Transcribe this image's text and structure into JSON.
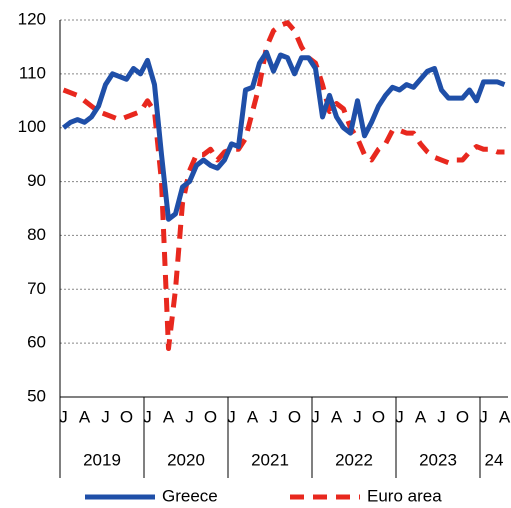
{
  "chart_data": {
    "type": "line",
    "x": [
      "2019-01",
      "2019-02",
      "2019-03",
      "2019-04",
      "2019-05",
      "2019-06",
      "2019-07",
      "2019-08",
      "2019-09",
      "2019-10",
      "2019-11",
      "2019-12",
      "2020-01",
      "2020-02",
      "2020-03",
      "2020-04",
      "2020-05",
      "2020-06",
      "2020-07",
      "2020-08",
      "2020-09",
      "2020-10",
      "2020-11",
      "2020-12",
      "2021-01",
      "2021-02",
      "2021-03",
      "2021-04",
      "2021-05",
      "2021-06",
      "2021-07",
      "2021-08",
      "2021-09",
      "2021-10",
      "2021-11",
      "2021-12",
      "2022-01",
      "2022-02",
      "2022-03",
      "2022-04",
      "2022-05",
      "2022-06",
      "2022-07",
      "2022-08",
      "2022-09",
      "2022-10",
      "2022-11",
      "2022-12",
      "2023-01",
      "2023-02",
      "2023-03",
      "2023-04",
      "2023-05",
      "2023-06",
      "2023-07",
      "2023-08",
      "2023-09",
      "2023-10",
      "2023-11",
      "2023-12",
      "2024-01",
      "2024-02",
      "2024-03",
      "2024-04"
    ],
    "xticks": [
      {
        "value": "2019-01",
        "label": "J"
      },
      {
        "value": "2019-04",
        "label": "A"
      },
      {
        "value": "2019-07",
        "label": "J"
      },
      {
        "value": "2019-10",
        "label": "O"
      },
      {
        "value": "2020-01",
        "label": "J"
      },
      {
        "value": "2020-04",
        "label": "A"
      },
      {
        "value": "2020-07",
        "label": "J"
      },
      {
        "value": "2020-10",
        "label": "O"
      },
      {
        "value": "2021-01",
        "label": "J"
      },
      {
        "value": "2021-04",
        "label": "A"
      },
      {
        "value": "2021-07",
        "label": "J"
      },
      {
        "value": "2021-10",
        "label": "O"
      },
      {
        "value": "2022-01",
        "label": "J"
      },
      {
        "value": "2022-04",
        "label": "A"
      },
      {
        "value": "2022-07",
        "label": "J"
      },
      {
        "value": "2022-10",
        "label": "O"
      },
      {
        "value": "2023-01",
        "label": "J"
      },
      {
        "value": "2023-04",
        "label": "A"
      },
      {
        "value": "2023-07",
        "label": "J"
      },
      {
        "value": "2023-10",
        "label": "O"
      },
      {
        "value": "2024-01",
        "label": "J"
      },
      {
        "value": "2024-04",
        "label": "A"
      }
    ],
    "xgroups": [
      {
        "value": "2019-01",
        "label": "2019"
      },
      {
        "value": "2020-01",
        "label": "2020"
      },
      {
        "value": "2021-01",
        "label": "2021"
      },
      {
        "value": "2022-01",
        "label": "2022"
      },
      {
        "value": "2023-01",
        "label": "2023"
      },
      {
        "value": "2024-01",
        "label": "24"
      }
    ],
    "series": [
      {
        "name": "Greece",
        "color": "#1f4fa8",
        "dash": false,
        "values": [
          100,
          101,
          101.5,
          101,
          102,
          104,
          108,
          110,
          109.5,
          109,
          111,
          110,
          112.5,
          108,
          95,
          83,
          84,
          89,
          90,
          93,
          94,
          93,
          92.5,
          94,
          97,
          96.5,
          107,
          107.5,
          112,
          114,
          110.5,
          113.5,
          113,
          110,
          113,
          113,
          111,
          102,
          106,
          102,
          100,
          99,
          105,
          98.5,
          101,
          104,
          106,
          107.5,
          107,
          108,
          107.5,
          109,
          110.5,
          111,
          107,
          105.5,
          105.5,
          105.5,
          107,
          105,
          108.5,
          108.5,
          108.5,
          108
        ]
      },
      {
        "name": "Euro area",
        "color": "#e8281e",
        "dash": true,
        "values": [
          107,
          106.5,
          106,
          105,
          104,
          103,
          102.5,
          102,
          101.5,
          102,
          102.5,
          103,
          105,
          103,
          90,
          59,
          70,
          86,
          92,
          95,
          95,
          96,
          94,
          95.5,
          96,
          96,
          98,
          103,
          108,
          115,
          118,
          119,
          119.5,
          118,
          115,
          113,
          112,
          108,
          103,
          104.5,
          103.5,
          100,
          98,
          95,
          94,
          96,
          97,
          99.5,
          99.5,
          99,
          99,
          97,
          95.5,
          94.5,
          94,
          93.5,
          94,
          94,
          95.5,
          96.5,
          96,
          96,
          95.5,
          95.5
        ]
      }
    ],
    "ylim": [
      50,
      120
    ],
    "yticks": [
      50,
      60,
      70,
      80,
      90,
      100,
      110,
      120
    ],
    "grid": true
  }
}
